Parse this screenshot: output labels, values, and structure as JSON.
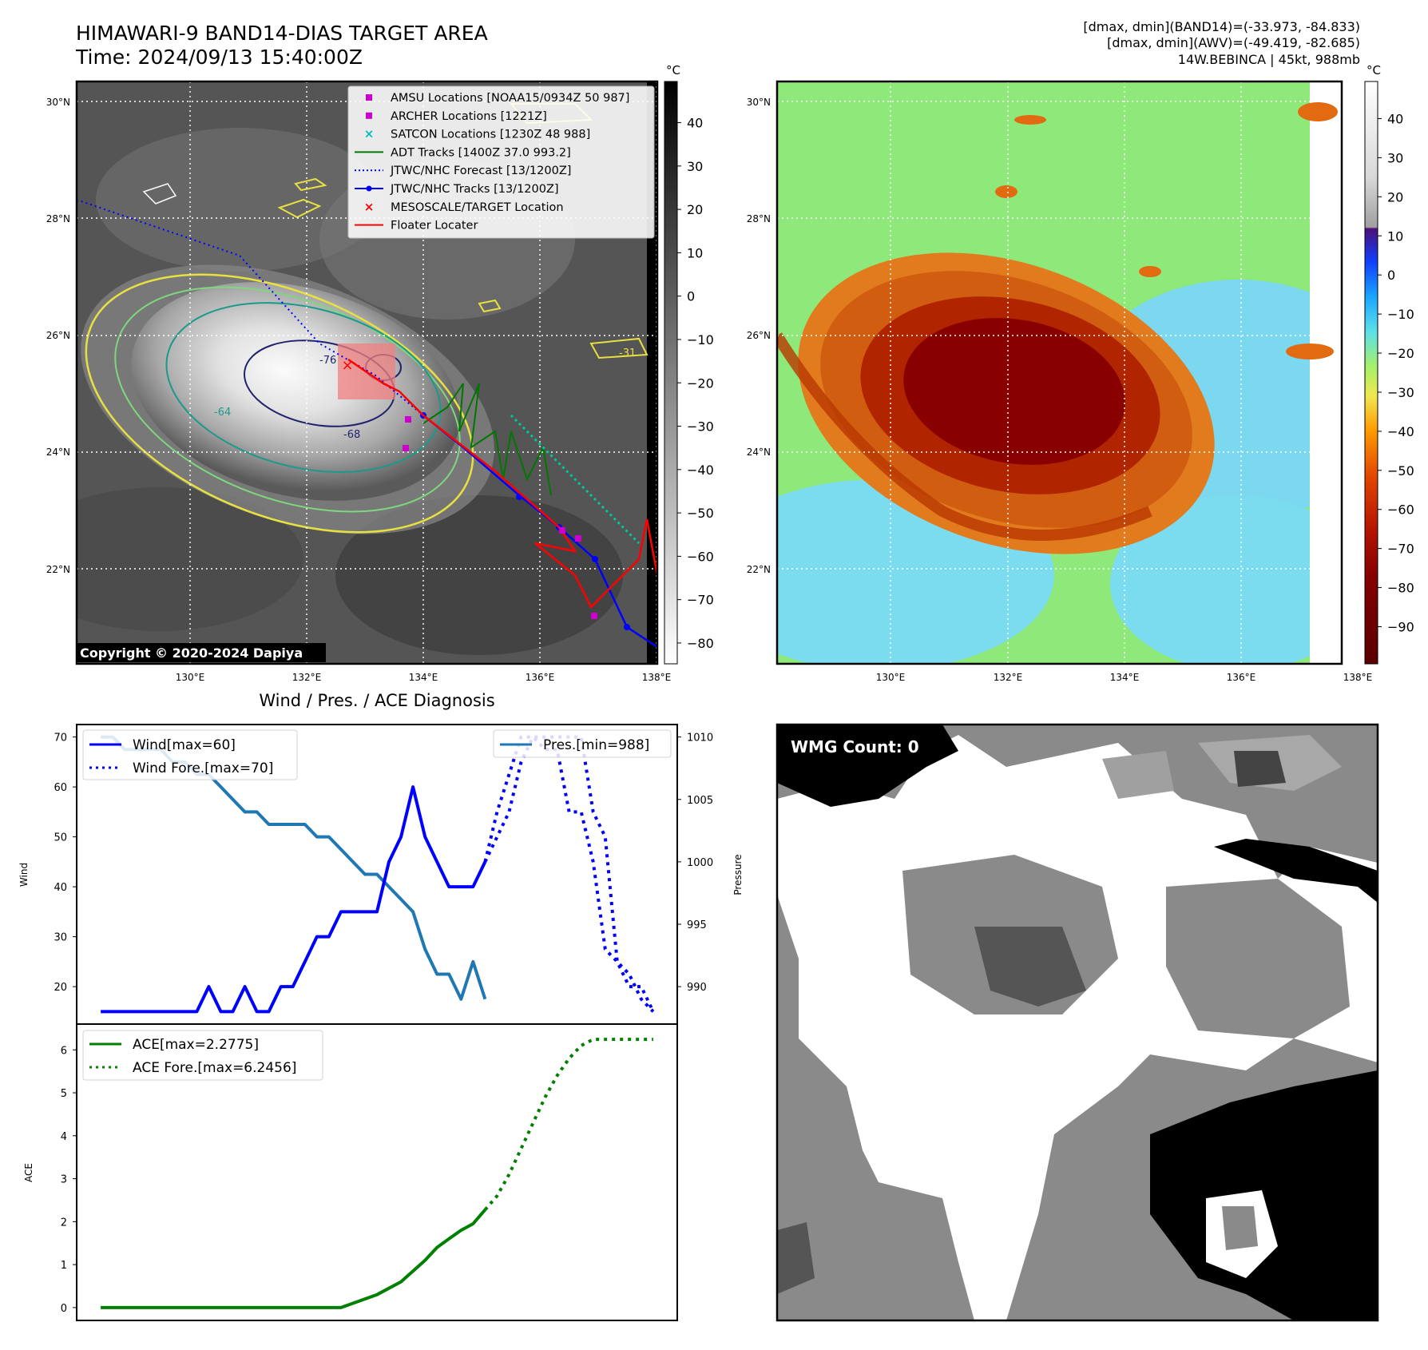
{
  "header": {
    "title_line1": "HIMAWARI-9 BAND14-DIAS TARGET AREA",
    "title_line2": "Time: 2024/09/13 15:40:00Z",
    "info_line1": "[dmax, dmin](BAND14)=(-33.973, -84.833)",
    "info_line2": "[dmax, dmin](AWV)=(-49.419, -82.685)",
    "info_line3": "14W.BEBINCA | 45kt, 988mb"
  },
  "map": {
    "lat_labels": [
      "30°N",
      "28°N",
      "26°N",
      "24°N",
      "22°N"
    ],
    "lon_labels": [
      "130°E",
      "132°E",
      "134°E",
      "136°E",
      "138°E"
    ],
    "copyright": "Copyright © 2020-2024 Dapiya",
    "contour_labels": [
      "-76",
      "-64",
      "-68",
      "-31"
    ],
    "legend": [
      {
        "label": "AMSU Locations [NOAA15/0934Z 50 987]",
        "color": "#cc00cc",
        "marker": "square"
      },
      {
        "label": "ARCHER Locations [1221Z]",
        "color": "#cc00cc",
        "marker": "square"
      },
      {
        "label": "SATCON Locations [1230Z 48 988]",
        "color": "#00bbbb",
        "marker": "x"
      },
      {
        "label": "ADT Tracks [1400Z 37.0 993.2]",
        "color": "#007700",
        "marker": "line"
      },
      {
        "label": "JTWC/NHC Forecast [13/1200Z]",
        "color": "#0000ff",
        "marker": "dotted"
      },
      {
        "label": "JTWC/NHC Tracks [13/1200Z]",
        "color": "#0000ff",
        "marker": "line-dot"
      },
      {
        "label": "MESOSCALE/TARGET Location",
        "color": "#ff0000",
        "marker": "x"
      },
      {
        "label": "Floater Locater",
        "color": "#ff0000",
        "marker": "line"
      }
    ]
  },
  "colorbar_gray": {
    "unit": "°C",
    "ticks": [
      "40",
      "30",
      "20",
      "10",
      "0",
      "−10",
      "−20",
      "−30",
      "−40",
      "−50",
      "−60",
      "−70",
      "−80"
    ]
  },
  "colorbar_color": {
    "unit": "°C",
    "ticks": [
      "40",
      "30",
      "20",
      "10",
      "0",
      "−10",
      "−20",
      "−30",
      "−40",
      "−50",
      "−60",
      "−70",
      "−80",
      "−90"
    ]
  },
  "wind_panel": {
    "title": "Wind / Pres. / ACE Diagnosis",
    "ylabel_left": "Wind",
    "ylabel_right": "Pressure",
    "left_ticks": [
      "70",
      "60",
      "50",
      "40",
      "30",
      "20"
    ],
    "right_ticks": [
      "1010",
      "1005",
      "1000",
      "995",
      "990"
    ],
    "legend_wind": "Wind[max=60]",
    "legend_wind_fore": "Wind Fore.[max=70]",
    "legend_pres": "Pres.[min=988]"
  },
  "ace_panel": {
    "ylabel": "ACE",
    "ticks": [
      "6",
      "5",
      "4",
      "3",
      "2",
      "1",
      "0"
    ],
    "legend_ace": "ACE[max=2.2775]",
    "legend_ace_fore": "ACE Fore.[max=6.2456]"
  },
  "wmg_panel": {
    "label": "WMG Count: 0"
  },
  "chart_data": [
    {
      "type": "line",
      "title": "Wind / Pres. / ACE Diagnosis",
      "ylabel": "Wind",
      "ylim": [
        12.5,
        72.5
      ],
      "xlim": [
        -2,
        48
      ],
      "series": [
        {
          "name": "Wind[max=60]",
          "style": "solid",
          "color": "#0000ff",
          "x": [
            0,
            1,
            2,
            3,
            4,
            5,
            6,
            7,
            8,
            9,
            10,
            11,
            12,
            13,
            14,
            15,
            16,
            17,
            18,
            19,
            20,
            21,
            22,
            23,
            24,
            25,
            26,
            27,
            28,
            29,
            30,
            31,
            32
          ],
          "values": [
            15,
            15,
            15,
            15,
            15,
            15,
            15,
            15,
            15,
            20,
            15,
            15,
            20,
            15,
            15,
            20,
            20,
            25,
            30,
            30,
            35,
            35,
            35,
            35,
            45,
            50,
            60,
            50,
            45,
            40,
            40,
            40,
            45
          ]
        },
        {
          "name": "Wind Fore.[max=70]",
          "style": "dotted",
          "color": "#0000ff",
          "x": [
            32,
            33,
            34,
            35,
            36,
            37,
            38,
            39,
            40,
            41,
            42,
            43,
            44,
            45,
            46
          ],
          "values": [
            45,
            50,
            55,
            65,
            70,
            70,
            70,
            70,
            70,
            55,
            50,
            25,
            20,
            20,
            15
          ]
        }
      ]
    },
    {
      "type": "line",
      "ylabel": "Pressure",
      "ylim": [
        987,
        1011
      ],
      "series": [
        {
          "name": "Pres.[min=988]",
          "style": "solid",
          "color": "#1f77b4",
          "x": [
            0,
            1,
            2,
            3,
            4,
            5,
            6,
            7,
            8,
            9,
            10,
            11,
            12,
            13,
            14,
            15,
            16,
            17,
            18,
            19,
            20,
            21,
            22,
            23,
            24,
            25,
            26,
            27,
            28,
            29,
            30,
            31,
            32
          ],
          "values": [
            1010,
            1010,
            1009,
            1009,
            1009,
            1009,
            1008,
            1008,
            1007,
            1007,
            1006,
            1005,
            1004,
            1004,
            1003,
            1003,
            1003,
            1003,
            1002,
            1002,
            1001,
            1000,
            999,
            999,
            998,
            997,
            996,
            993,
            991,
            991,
            989,
            992,
            989
          ]
        },
        {
          "name": "Pres. forecast",
          "style": "dotted",
          "color": "#0000ff",
          "x": [
            32,
            33,
            34,
            35,
            36,
            37,
            38,
            39,
            40,
            41,
            42,
            43,
            44,
            45,
            46
          ],
          "values": [
            1000,
            1004,
            1007,
            1010,
            1010,
            1009,
            1009,
            1004,
            1004,
            1000,
            993,
            992,
            991,
            989,
            988
          ]
        }
      ]
    },
    {
      "type": "line",
      "ylabel": "ACE",
      "ylim": [
        -0.3,
        6.6
      ],
      "series": [
        {
          "name": "ACE[max=2.2775]",
          "style": "solid",
          "color": "#008000",
          "x": [
            0,
            5,
            10,
            15,
            19,
            20,
            22,
            23,
            24,
            25,
            26,
            27,
            28,
            29,
            30,
            31,
            32
          ],
          "values": [
            0,
            0,
            0,
            0,
            0,
            0,
            0.2,
            0.3,
            0.45,
            0.6,
            0.85,
            1.1,
            1.4,
            1.6,
            1.8,
            1.95,
            2.2775
          ]
        },
        {
          "name": "ACE Fore.[max=6.2456]",
          "style": "dotted",
          "color": "#008000",
          "x": [
            32,
            33,
            34,
            35,
            36,
            37,
            38,
            39,
            40,
            41,
            42,
            43,
            44,
            45,
            46
          ],
          "values": [
            2.2775,
            2.6,
            3.1,
            3.7,
            4.3,
            4.9,
            5.4,
            5.8,
            6.1,
            6.2456,
            6.2456,
            6.2456,
            6.2456,
            6.2456,
            6.2456
          ]
        }
      ]
    }
  ]
}
